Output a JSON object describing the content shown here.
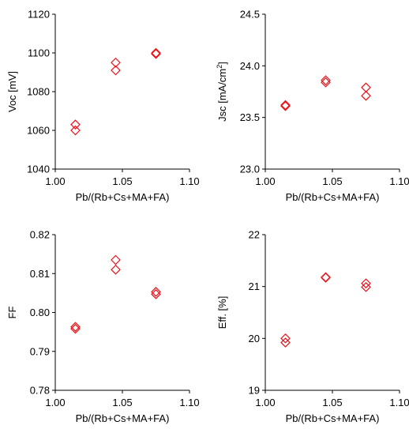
{
  "chart_data": [
    {
      "type": "scatter",
      "xlabel": "Pb/(Rb+Cs+MA+FA)",
      "ylabel": "Voc [mV]",
      "ylabel_parts": [
        {
          "t": "Voc [mV]"
        }
      ],
      "xlim": [
        1.0,
        1.1
      ],
      "ylim": [
        1040,
        1120
      ],
      "xticks": [
        "1.00",
        "1.05",
        "1.10"
      ],
      "yticks": [
        "1040",
        "1060",
        "1080",
        "1100",
        "1120"
      ],
      "marker": "diamond-open",
      "color": "#e8141c",
      "points": [
        {
          "x": 1.015,
          "y": 1063
        },
        {
          "x": 1.015,
          "y": 1060
        },
        {
          "x": 1.045,
          "y": 1095
        },
        {
          "x": 1.045,
          "y": 1091
        },
        {
          "x": 1.075,
          "y": 1100
        },
        {
          "x": 1.075,
          "y": 1099.5
        }
      ]
    },
    {
      "type": "scatter",
      "xlabel": "Pb/(Rb+Cs+MA+FA)",
      "ylabel": "Jsc [mA/cm2]",
      "ylabel_parts": [
        {
          "t": "Jsc [mA/cm"
        },
        {
          "t": "2",
          "sup": true
        },
        {
          "t": "]"
        }
      ],
      "xlim": [
        1.0,
        1.1
      ],
      "ylim": [
        23.0,
        24.5
      ],
      "xticks": [
        "1.00",
        "1.05",
        "1.10"
      ],
      "yticks": [
        "23.0",
        "23.5",
        "24.0",
        "24.5"
      ],
      "marker": "diamond-open",
      "color": "#e8141c",
      "points": [
        {
          "x": 1.015,
          "y": 23.62
        },
        {
          "x": 1.015,
          "y": 23.61
        },
        {
          "x": 1.045,
          "y": 23.86
        },
        {
          "x": 1.045,
          "y": 23.84
        },
        {
          "x": 1.075,
          "y": 23.79
        },
        {
          "x": 1.075,
          "y": 23.71
        }
      ]
    },
    {
      "type": "scatter",
      "xlabel": "Pb/(Rb+Cs+MA+FA)",
      "ylabel": "FF",
      "ylabel_parts": [
        {
          "t": "FF"
        }
      ],
      "xlim": [
        1.0,
        1.1
      ],
      "ylim": [
        0.78,
        0.82
      ],
      "xticks": [
        "1.00",
        "1.05",
        "1.10"
      ],
      "yticks": [
        "0.78",
        "0.79",
        "0.80",
        "0.81",
        "0.82"
      ],
      "marker": "diamond-open",
      "color": "#e8141c",
      "points": [
        {
          "x": 1.015,
          "y": 0.7963
        },
        {
          "x": 1.015,
          "y": 0.7958
        },
        {
          "x": 1.045,
          "y": 0.8135
        },
        {
          "x": 1.045,
          "y": 0.811
        },
        {
          "x": 1.075,
          "y": 0.8053
        },
        {
          "x": 1.075,
          "y": 0.8047
        }
      ]
    },
    {
      "type": "scatter",
      "xlabel": "Pb/(Rb+Cs+MA+FA)",
      "ylabel": "Eff. [%]",
      "ylabel_parts": [
        {
          "t": "Eff. [%]"
        }
      ],
      "xlim": [
        1.0,
        1.1
      ],
      "ylim": [
        19,
        22
      ],
      "xticks": [
        "1.00",
        "1.05",
        "1.10"
      ],
      "yticks": [
        "19",
        "20",
        "21",
        "22"
      ],
      "marker": "diamond-open",
      "color": "#e8141c",
      "points": [
        {
          "x": 1.015,
          "y": 20.0
        },
        {
          "x": 1.015,
          "y": 19.92
        },
        {
          "x": 1.045,
          "y": 21.18
        },
        {
          "x": 1.045,
          "y": 21.17
        },
        {
          "x": 1.075,
          "y": 21.06
        },
        {
          "x": 1.075,
          "y": 20.99
        }
      ]
    }
  ]
}
